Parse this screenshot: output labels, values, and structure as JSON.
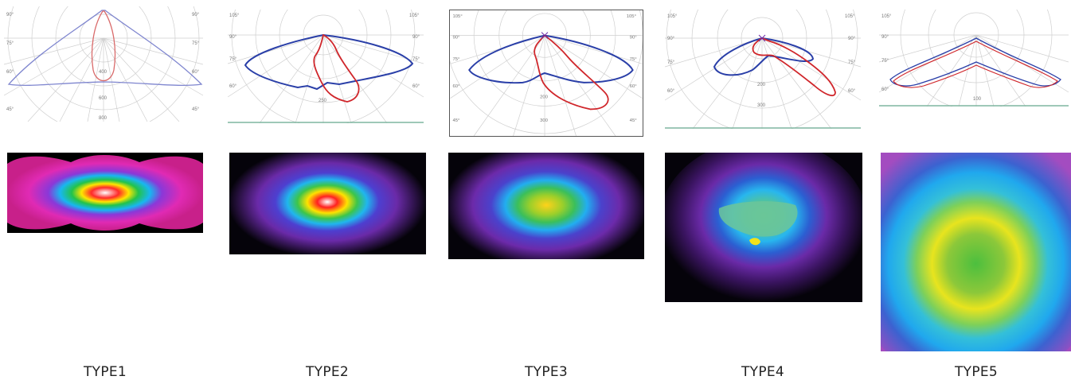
{
  "types": [
    {
      "label": "TYPE1",
      "polar_ticks": [
        "90°",
        "90°",
        "75°",
        "75°",
        "60°",
        "60°",
        "45°",
        "45°",
        "400",
        "600",
        "800"
      ]
    },
    {
      "label": "TYPE2",
      "polar_ticks": [
        "105°",
        "105°",
        "90°",
        "90°",
        "75°",
        "75°",
        "60°",
        "60°",
        "250"
      ]
    },
    {
      "label": "TYPE3",
      "polar_ticks": [
        "105°",
        "105°",
        "90°",
        "90°",
        "75°",
        "75°",
        "60°",
        "60°",
        "45°",
        "45°",
        "200",
        "300"
      ]
    },
    {
      "label": "TYPE4",
      "polar_ticks": [
        "105°",
        "105°",
        "90°",
        "90°",
        "75°",
        "75°",
        "60°",
        "60°",
        "200",
        "300"
      ]
    },
    {
      "label": "TYPE5",
      "polar_ticks": [
        "105°",
        "90°",
        "75°",
        "60°",
        "100"
      ]
    }
  ],
  "colors": {
    "curve_a": "#2a3fa8",
    "curve_b": "#d0262b",
    "grid": "#c9c9c9"
  }
}
